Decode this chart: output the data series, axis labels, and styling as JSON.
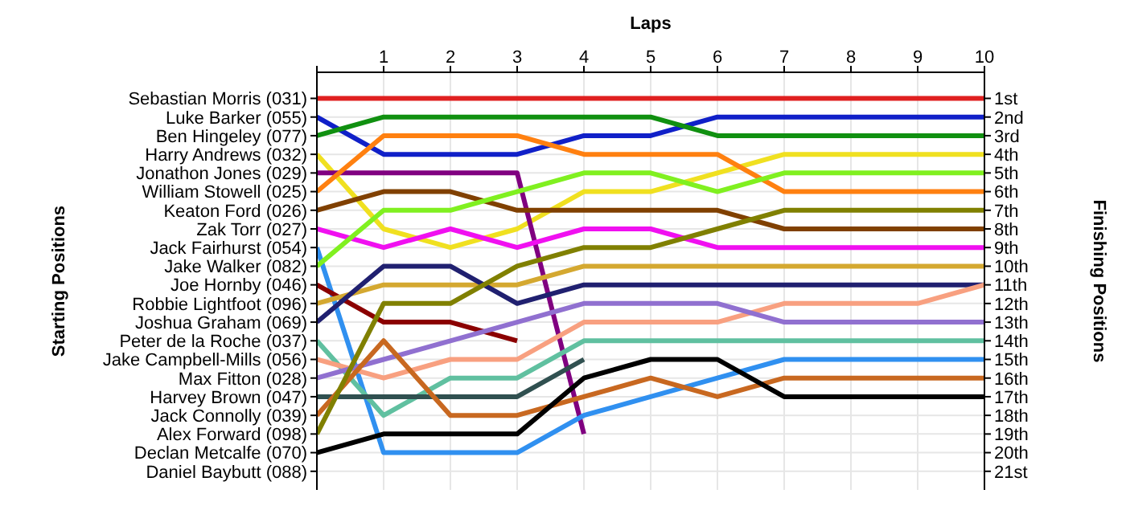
{
  "chart_data": {
    "type": "line",
    "xlabel": "Laps",
    "y2label": "Finishing Positions",
    "x": [
      0,
      1,
      2,
      3,
      4,
      5,
      6,
      7,
      8,
      9,
      10
    ],
    "xlim": [
      0,
      10
    ],
    "xticks": [
      {
        "value": 0,
        "label": null
      },
      1,
      2,
      3,
      4,
      5,
      6,
      7,
      8,
      9,
      10
    ],
    "y2lim": [
      22,
      -0.4
    ],
    "y2ticks": [
      {
        "value": 1,
        "label": "1st"
      },
      {
        "value": 2,
        "label": "2nd"
      },
      {
        "value": 3,
        "label": "3rd"
      },
      {
        "value": 4,
        "label": "4th"
      },
      {
        "value": 5,
        "label": "5th"
      },
      {
        "value": 6,
        "label": "6th"
      },
      {
        "value": 7,
        "label": "7th"
      },
      {
        "value": 8,
        "label": "8th"
      },
      {
        "value": 9,
        "label": "9th"
      },
      {
        "value": 10,
        "label": "10th"
      },
      {
        "value": 11,
        "label": "11th"
      },
      {
        "value": 12,
        "label": "12th"
      },
      {
        "value": 13,
        "label": "13th"
      },
      {
        "value": 14,
        "label": "14th"
      },
      {
        "value": 15,
        "label": "15th"
      },
      {
        "value": 16,
        "label": "16th"
      },
      {
        "value": 17,
        "label": "17th"
      },
      {
        "value": 18,
        "label": "18th"
      },
      {
        "value": 19,
        "label": "19th"
      },
      {
        "value": 20,
        "label": "20th"
      },
      {
        "value": 21,
        "label": "21st"
      }
    ],
    "grid": true,
    "marker": "none",
    "line_style": "solid",
    "annotations": [
      "Sebastian Morris (031)",
      "Luke Barker (055)",
      "Ben Hingeley (077)",
      "Harry Andrews (032)",
      "Jonathon Jones (029)",
      "William Stowell (025)",
      "Keaton Ford (026)",
      "Zak Torr (027)",
      "Jack Fairhurst (054)",
      "Jake Walker (082)",
      "Joe Hornby (046)",
      "Robbie Lightfoot (096)",
      "Joshua Graham (069)",
      "Peter de la Roche (037)",
      "Jake Campbell-Mills (056)",
      "Max Fitton (028)",
      "Harvey Brown (047)",
      "Jack Connolly (039)",
      "Alex Forward (098)",
      "Declan Metcalfe (070)",
      "Daniel Baybutt (088)",
      "Starting Positions"
    ],
    "series": [
      {
        "axis": "y2",
        "color": "#e02020",
        "values": [
          1,
          1,
          1,
          1,
          1,
          1,
          1,
          1,
          1,
          1,
          1
        ]
      },
      {
        "axis": "y2",
        "color": "#1020c8",
        "values": [
          2,
          4,
          4,
          4,
          3,
          3,
          2,
          2,
          2,
          2,
          2
        ]
      },
      {
        "axis": "y2",
        "color": "#109010",
        "values": [
          3,
          2,
          2,
          2,
          2,
          2,
          3,
          3,
          3,
          3,
          3
        ]
      },
      {
        "axis": "y2",
        "color": "#f0e020",
        "values": [
          4,
          8,
          9,
          8,
          6,
          6,
          5,
          4,
          4,
          4,
          4
        ]
      },
      {
        "axis": "y2",
        "color": "#800080",
        "values": [
          5,
          5,
          5,
          5,
          19,
          null,
          null,
          null,
          null,
          null,
          null
        ]
      },
      {
        "axis": "y2",
        "color": "#ff8010",
        "values": [
          6,
          3,
          3,
          3,
          4,
          4,
          4,
          6,
          6,
          6,
          6
        ]
      },
      {
        "axis": "y2",
        "color": "#804000",
        "values": [
          7,
          6,
          6,
          7,
          7,
          7,
          7,
          8,
          8,
          8,
          8
        ]
      },
      {
        "axis": "y2",
        "color": "#f010f0",
        "values": [
          8,
          9,
          8,
          9,
          8,
          8,
          9,
          9,
          9,
          9,
          9
        ]
      },
      {
        "axis": "y2",
        "color": "#3090f0",
        "values": [
          9,
          20,
          20,
          20,
          18,
          17,
          16,
          15,
          15,
          15,
          15
        ]
      },
      {
        "axis": "y2",
        "color": "#80f020",
        "values": [
          10,
          7,
          7,
          6,
          5,
          5,
          6,
          5,
          5,
          5,
          5
        ]
      },
      {
        "axis": "y2",
        "color": "#8b0000",
        "values": [
          11,
          13,
          13,
          14,
          null,
          null,
          null,
          null,
          null,
          null,
          null
        ]
      },
      {
        "axis": "y2",
        "color": "#d4a830",
        "values": [
          12,
          11,
          11,
          11,
          10,
          10,
          10,
          10,
          10,
          10,
          10
        ]
      },
      {
        "axis": "y2",
        "color": "#202070",
        "values": [
          13,
          10,
          10,
          12,
          11,
          11,
          11,
          11,
          11,
          11,
          11
        ]
      },
      {
        "axis": "y2",
        "color": "#60c0a0",
        "values": [
          14,
          18,
          16,
          16,
          14,
          14,
          14,
          14,
          14,
          14,
          14
        ]
      },
      {
        "axis": "y2",
        "color": "#f8a080",
        "values": [
          15,
          16,
          15,
          15,
          13,
          13,
          13,
          12,
          12,
          12,
          11
        ]
      },
      {
        "axis": "y2",
        "color": "#9070d0",
        "values": [
          16,
          15,
          14,
          13,
          12,
          12,
          12,
          13,
          13,
          13,
          13
        ]
      },
      {
        "axis": "y2",
        "color": "#305050",
        "values": [
          17,
          17,
          17,
          17,
          15,
          null,
          null,
          null,
          null,
          null,
          null
        ]
      },
      {
        "axis": "y2",
        "color": "#c86820",
        "values": [
          18,
          14,
          18,
          18,
          17,
          16,
          17,
          16,
          16,
          16,
          16
        ]
      },
      {
        "axis": "y2",
        "color": "#808000",
        "values": [
          19,
          12,
          12,
          10,
          9,
          9,
          8,
          7,
          7,
          7,
          7
        ]
      },
      {
        "axis": "y2",
        "color": "#000000",
        "values": [
          20,
          19,
          19,
          19,
          16,
          15,
          15,
          17,
          17,
          17,
          17
        ]
      }
    ]
  }
}
